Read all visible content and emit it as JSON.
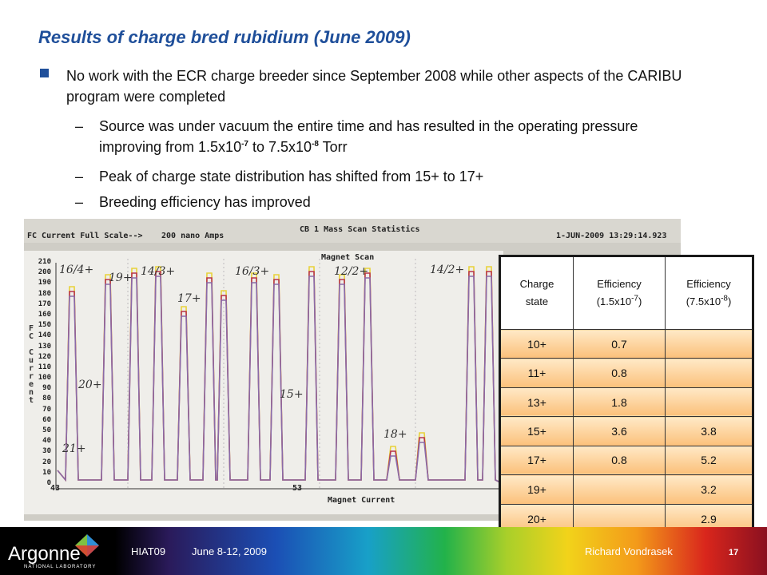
{
  "slide": {
    "title": "Results of charge bred rubidium (June 2009)",
    "bullet": "No work with the ECR charge breeder since September 2008 while other aspects of the CARIBU program were completed",
    "dash": "–",
    "sub1": {
      "a": "Source was under vacuum the entire time and has resulted in the operating pressure improving from 1.5x10",
      "exp1": "-7",
      "b": " to 7.5x10",
      "exp2": "-8",
      "c": " Torr"
    },
    "sub2": "Peak of charge state distribution has shifted from 15+ to 17+",
    "sub3": "Breeding efficiency has improved"
  },
  "scan": {
    "header_left": "FC Current Full Scale-->",
    "header_mid": "200 nano Amps",
    "header_title": "CB 1 Mass Scan Statistics",
    "header_right": "1-JUN-2009 13:29:14.923",
    "plot_title": "Magnet Scan",
    "x_label": "Magnet Current",
    "x_tick_left": "43",
    "x_tick_mid": "53",
    "y_ticks": [
      "210",
      "200",
      "190",
      "180",
      "170",
      "160",
      "150",
      "140",
      "130",
      "120",
      "110",
      "100",
      "90",
      "80",
      "70",
      "60",
      "50",
      "40",
      "30",
      "20",
      "10",
      "0"
    ],
    "side_label": [
      "F",
      "C",
      "",
      "C",
      "u",
      "r",
      "r",
      "e",
      "n",
      "t"
    ],
    "annotations": [
      "16/4+",
      "19+",
      "14/3+",
      "17+",
      "16/3+",
      "12/2+",
      "14/2+",
      "20+",
      "15+",
      "18+",
      "21+"
    ],
    "trace_colors": [
      "#e8d23a",
      "#b8344a",
      "#8a6aa8"
    ]
  },
  "table": {
    "headers": {
      "c1": [
        "Charge",
        "state"
      ],
      "c2": [
        "Efficiency",
        "(1.5x10",
        "-7",
        ")"
      ],
      "c3": [
        "Efficiency",
        "(7.5x10",
        "-8",
        ")"
      ]
    },
    "rows": [
      {
        "state": "10+",
        "eff1": "0.7",
        "eff2": ""
      },
      {
        "state": "11+",
        "eff1": "0.8",
        "eff2": ""
      },
      {
        "state": "13+",
        "eff1": "1.8",
        "eff2": ""
      },
      {
        "state": "15+",
        "eff1": "3.6",
        "eff2": "3.8"
      },
      {
        "state": "17+",
        "eff1": "0.8",
        "eff2": "5.2"
      },
      {
        "state": "19+",
        "eff1": "",
        "eff2": "3.2"
      },
      {
        "state": "20+",
        "eff1": "",
        "eff2": "2.9"
      }
    ]
  },
  "footer": {
    "conference": "HIAT09",
    "dates": "June 8-12, 2009",
    "author": "Richard Vondrasek",
    "page": "17",
    "logo": "Argonne",
    "logo_sub": "NATIONAL LABORATORY"
  }
}
